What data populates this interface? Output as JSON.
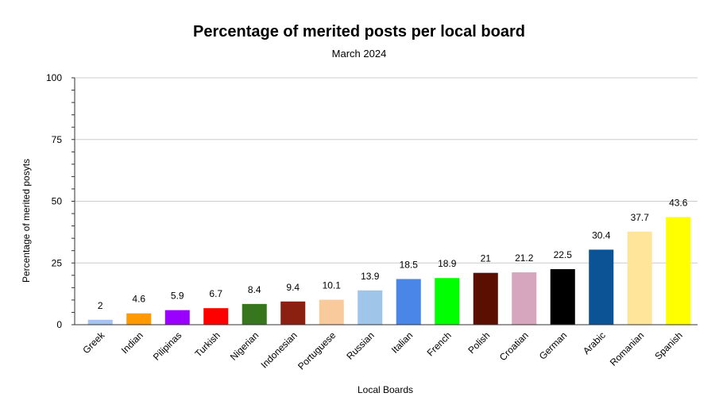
{
  "chart_data": {
    "type": "bar",
    "title": "Percentage of merited posts per local board",
    "subtitle": "March 2024",
    "xlabel": "Local Boards",
    "ylabel": "Percentage of merited posyts",
    "ylim": [
      0,
      100
    ],
    "yticks": [
      "0",
      "25",
      "50",
      "75",
      "100"
    ],
    "grid": true,
    "legend": "none",
    "categories": [
      "Greek",
      "Indian",
      "Pilipinas",
      "Turkish",
      "Nigerian",
      "Indonesian",
      "Portuguese",
      "Russian",
      "Italian",
      "French",
      "Polish",
      "Croatian",
      "German",
      "Arabic",
      "Romanian",
      "Spanish"
    ],
    "values": [
      2,
      4.6,
      5.9,
      6.7,
      8.4,
      9.4,
      10.1,
      13.9,
      18.5,
      18.9,
      21,
      21.2,
      22.5,
      30.4,
      37.7,
      43.6
    ],
    "value_labels": [
      "2",
      "4.6",
      "5.9",
      "6.7",
      "8.4",
      "9.4",
      "10.1",
      "13.9",
      "18.5",
      "18.9",
      "21",
      "21.2",
      "22.5",
      "30.4",
      "37.7",
      "43.6"
    ],
    "colors": [
      "#a4c2f4",
      "#ff9900",
      "#9900ff",
      "#ff0000",
      "#38761d",
      "#8b2010",
      "#f9cb9c",
      "#9fc5e8",
      "#4a86e8",
      "#00ff00",
      "#5b0f00",
      "#d5a6bd",
      "#000000",
      "#0b5394",
      "#ffe599",
      "#ffff00"
    ]
  }
}
